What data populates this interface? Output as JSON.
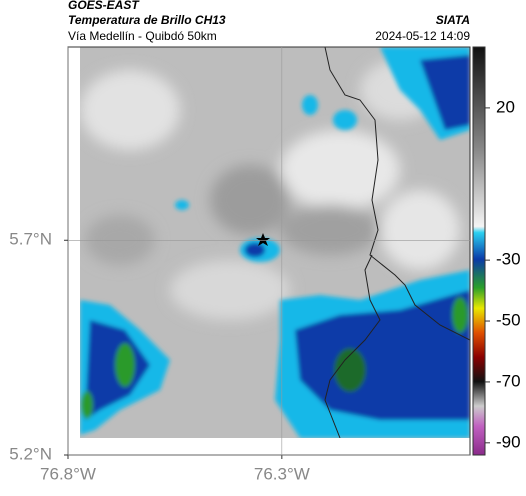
{
  "header": {
    "source": "GOES-EAST",
    "title": "Temperatura de Brillo CH13",
    "agency": "SIATA",
    "subtitle": "Vía Medellín - Quibdó 50km",
    "timestamp": "2024-05-12 14:09"
  },
  "map": {
    "lon_lim": [
      -76.8,
      -75.86
    ],
    "lat_lim": [
      5.2,
      6.15
    ],
    "lon_ticks": [
      {
        "value": -76.8,
        "label": "76.8°W"
      },
      {
        "value": -76.3,
        "label": "76.3°W"
      }
    ],
    "lat_ticks": [
      {
        "value": 5.7,
        "label": "5.7°N"
      },
      {
        "value": 5.2,
        "label": "5.2°N"
      }
    ],
    "grid": true
  },
  "colorbar": {
    "lim": [
      40,
      -94
    ],
    "ticks": [
      20,
      -30,
      -50,
      -70,
      -90
    ]
  }
}
